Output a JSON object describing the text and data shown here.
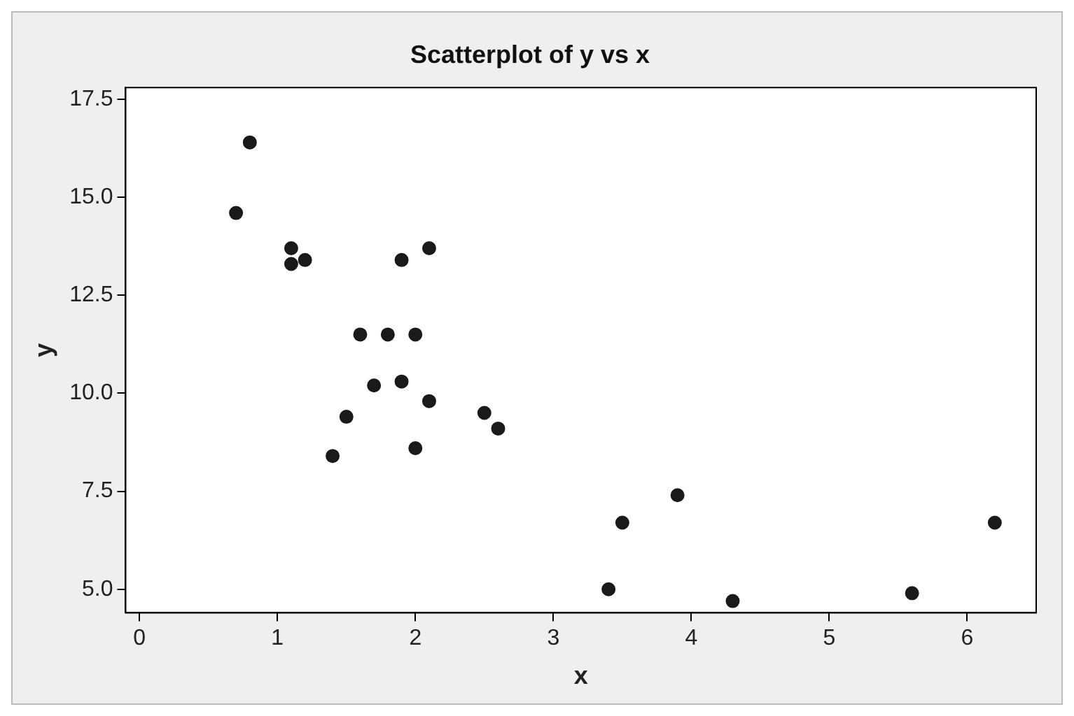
{
  "chart_data": {
    "type": "scatter",
    "title": "Scatterplot of y vs x",
    "xlabel": "x",
    "ylabel": "y",
    "x": [
      0.8,
      0.7,
      1.1,
      1.1,
      1.2,
      1.9,
      2.1,
      1.6,
      1.8,
      2.0,
      1.7,
      1.9,
      2.1,
      1.5,
      1.4,
      2.0,
      2.5,
      2.6,
      3.4,
      3.5,
      3.9,
      4.3,
      5.6,
      6.2
    ],
    "series": [
      {
        "color": "#1a1a1a",
        "values": [
          16.4,
          14.6,
          13.7,
          13.3,
          13.4,
          13.4,
          13.7,
          11.5,
          11.5,
          11.5,
          10.2,
          10.3,
          9.8,
          9.4,
          8.4,
          8.6,
          9.5,
          9.1,
          5.0,
          6.7,
          7.4,
          4.7,
          4.9,
          6.7
        ]
      }
    ],
    "xlim": [
      -0.1,
      6.5
    ],
    "xticks": [
      0,
      1,
      2,
      3,
      4,
      5,
      6
    ],
    "ylim": [
      4.4,
      17.8
    ],
    "yticks": [
      {
        "value": 5,
        "label": "5.0"
      },
      {
        "value": 7.5,
        "label": "7.5"
      },
      {
        "value": 10,
        "label": "10.0"
      },
      {
        "value": 12.5,
        "label": "12.5"
      },
      {
        "value": 15,
        "label": "15.0"
      },
      {
        "value": 17.5,
        "label": "17.5"
      }
    ],
    "grid": false,
    "legend": false,
    "marker": "circle"
  }
}
